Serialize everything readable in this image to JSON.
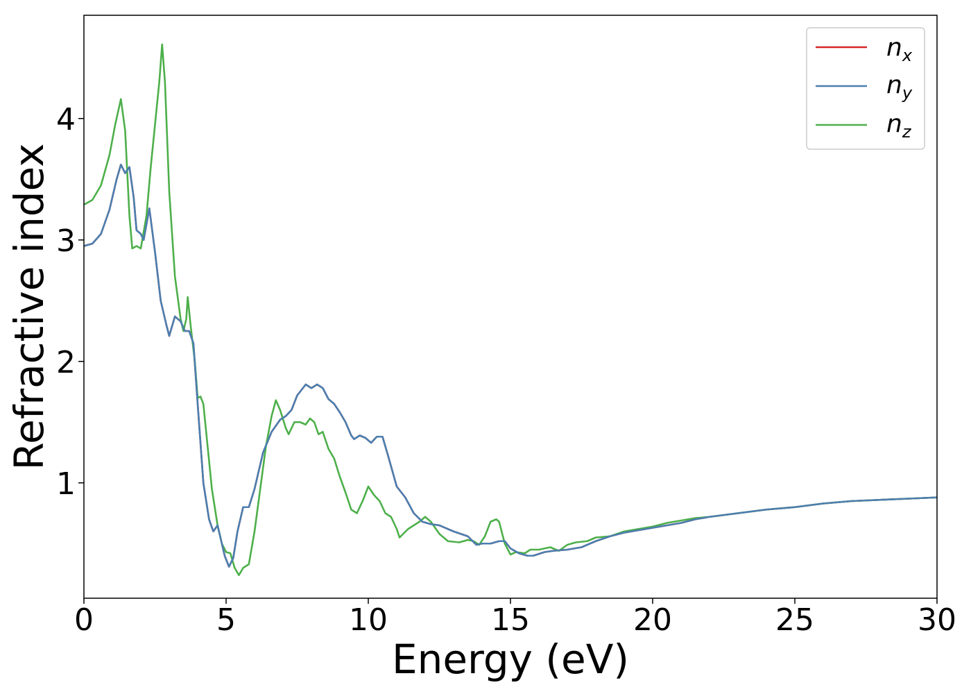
{
  "chart_data": {
    "type": "line",
    "title": "",
    "xlabel": "Energy (eV)",
    "ylabel": "Refractive index",
    "xlim": [
      0,
      30
    ],
    "ylim": [
      0.05,
      4.85
    ],
    "grid": false,
    "legend_position": "top-right",
    "xticks": [
      0,
      5,
      10,
      15,
      20,
      25,
      30
    ],
    "xtick_labels": [
      "0",
      "5",
      "10",
      "15",
      "20",
      "25",
      "30"
    ],
    "yticks": [
      1,
      2,
      3,
      4
    ],
    "ytick_labels": [
      "1",
      "2",
      "3",
      "4"
    ],
    "series": [
      {
        "name": "n_x",
        "legend_base": "n",
        "legend_sub": "x",
        "color": "#d62728",
        "points": [
          [
            0,
            2.95
          ],
          [
            0.3,
            2.97
          ],
          [
            0.6,
            3.05
          ],
          [
            0.9,
            3.25
          ],
          [
            1.15,
            3.5
          ],
          [
            1.3,
            3.62
          ],
          [
            1.45,
            3.55
          ],
          [
            1.6,
            3.6
          ],
          [
            1.75,
            3.35
          ],
          [
            1.85,
            3.08
          ],
          [
            2.0,
            3.05
          ],
          [
            2.1,
            3.0
          ],
          [
            2.3,
            3.26
          ],
          [
            2.5,
            2.9
          ],
          [
            2.7,
            2.5
          ],
          [
            2.9,
            2.3
          ],
          [
            3.0,
            2.21
          ],
          [
            3.2,
            2.37
          ],
          [
            3.4,
            2.33
          ],
          [
            3.55,
            2.25
          ],
          [
            3.7,
            2.25
          ],
          [
            3.85,
            2.15
          ],
          [
            4.0,
            1.65
          ],
          [
            4.2,
            1.0
          ],
          [
            4.4,
            0.7
          ],
          [
            4.55,
            0.6
          ],
          [
            4.7,
            0.65
          ],
          [
            4.8,
            0.55
          ],
          [
            4.95,
            0.4
          ],
          [
            5.1,
            0.31
          ],
          [
            5.25,
            0.38
          ],
          [
            5.4,
            0.6
          ],
          [
            5.6,
            0.8
          ],
          [
            5.8,
            0.8
          ],
          [
            6.0,
            0.95
          ],
          [
            6.3,
            1.25
          ],
          [
            6.6,
            1.42
          ],
          [
            6.9,
            1.52
          ],
          [
            7.1,
            1.55
          ],
          [
            7.3,
            1.6
          ],
          [
            7.5,
            1.72
          ],
          [
            7.8,
            1.81
          ],
          [
            8.0,
            1.78
          ],
          [
            8.2,
            1.81
          ],
          [
            8.4,
            1.78
          ],
          [
            8.6,
            1.69
          ],
          [
            8.8,
            1.65
          ],
          [
            9.0,
            1.58
          ],
          [
            9.2,
            1.5
          ],
          [
            9.4,
            1.39
          ],
          [
            9.5,
            1.36
          ],
          [
            9.7,
            1.39
          ],
          [
            9.9,
            1.37
          ],
          [
            10.1,
            1.33
          ],
          [
            10.3,
            1.38
          ],
          [
            10.5,
            1.38
          ],
          [
            10.7,
            1.22
          ],
          [
            11.0,
            0.97
          ],
          [
            11.3,
            0.88
          ],
          [
            11.6,
            0.75
          ],
          [
            11.9,
            0.68
          ],
          [
            12.2,
            0.66
          ],
          [
            12.5,
            0.65
          ],
          [
            13.0,
            0.6
          ],
          [
            13.5,
            0.56
          ],
          [
            13.8,
            0.49
          ],
          [
            14.0,
            0.5
          ],
          [
            14.3,
            0.5
          ],
          [
            14.6,
            0.52
          ],
          [
            14.8,
            0.52
          ],
          [
            15.0,
            0.46
          ],
          [
            15.3,
            0.42
          ],
          [
            15.6,
            0.4
          ],
          [
            15.8,
            0.4
          ],
          [
            16.2,
            0.43
          ],
          [
            16.5,
            0.44
          ],
          [
            17.0,
            0.45
          ],
          [
            17.5,
            0.47
          ],
          [
            18.0,
            0.52
          ],
          [
            18.5,
            0.56
          ],
          [
            19.0,
            0.59
          ],
          [
            19.5,
            0.61
          ],
          [
            20.0,
            0.63
          ],
          [
            20.5,
            0.65
          ],
          [
            21.0,
            0.67
          ],
          [
            21.5,
            0.7
          ],
          [
            22.0,
            0.72
          ],
          [
            23.0,
            0.75
          ],
          [
            24.0,
            0.78
          ],
          [
            25.0,
            0.8
          ],
          [
            26.0,
            0.83
          ],
          [
            27.0,
            0.85
          ],
          [
            28.0,
            0.86
          ],
          [
            29.0,
            0.87
          ],
          [
            30.0,
            0.88
          ]
        ]
      },
      {
        "name": "n_y",
        "legend_base": "n",
        "legend_sub": "y",
        "color": "#4a7fb0",
        "points": [
          [
            0,
            2.95
          ],
          [
            0.3,
            2.97
          ],
          [
            0.6,
            3.05
          ],
          [
            0.9,
            3.25
          ],
          [
            1.15,
            3.5
          ],
          [
            1.3,
            3.62
          ],
          [
            1.45,
            3.55
          ],
          [
            1.6,
            3.6
          ],
          [
            1.75,
            3.35
          ],
          [
            1.85,
            3.08
          ],
          [
            2.0,
            3.05
          ],
          [
            2.1,
            3.0
          ],
          [
            2.3,
            3.26
          ],
          [
            2.5,
            2.9
          ],
          [
            2.7,
            2.5
          ],
          [
            2.9,
            2.3
          ],
          [
            3.0,
            2.21
          ],
          [
            3.2,
            2.37
          ],
          [
            3.4,
            2.33
          ],
          [
            3.55,
            2.25
          ],
          [
            3.7,
            2.25
          ],
          [
            3.85,
            2.15
          ],
          [
            4.0,
            1.65
          ],
          [
            4.2,
            1.0
          ],
          [
            4.4,
            0.7
          ],
          [
            4.55,
            0.6
          ],
          [
            4.7,
            0.65
          ],
          [
            4.8,
            0.55
          ],
          [
            4.95,
            0.4
          ],
          [
            5.1,
            0.31
          ],
          [
            5.25,
            0.38
          ],
          [
            5.4,
            0.6
          ],
          [
            5.6,
            0.8
          ],
          [
            5.8,
            0.8
          ],
          [
            6.0,
            0.95
          ],
          [
            6.3,
            1.25
          ],
          [
            6.6,
            1.42
          ],
          [
            6.9,
            1.52
          ],
          [
            7.1,
            1.55
          ],
          [
            7.3,
            1.6
          ],
          [
            7.5,
            1.72
          ],
          [
            7.8,
            1.81
          ],
          [
            8.0,
            1.78
          ],
          [
            8.2,
            1.81
          ],
          [
            8.4,
            1.78
          ],
          [
            8.6,
            1.69
          ],
          [
            8.8,
            1.65
          ],
          [
            9.0,
            1.58
          ],
          [
            9.2,
            1.5
          ],
          [
            9.4,
            1.39
          ],
          [
            9.5,
            1.36
          ],
          [
            9.7,
            1.39
          ],
          [
            9.9,
            1.37
          ],
          [
            10.1,
            1.33
          ],
          [
            10.3,
            1.38
          ],
          [
            10.5,
            1.38
          ],
          [
            10.7,
            1.22
          ],
          [
            11.0,
            0.97
          ],
          [
            11.3,
            0.88
          ],
          [
            11.6,
            0.75
          ],
          [
            11.9,
            0.68
          ],
          [
            12.2,
            0.66
          ],
          [
            12.5,
            0.65
          ],
          [
            13.0,
            0.6
          ],
          [
            13.5,
            0.56
          ],
          [
            13.8,
            0.49
          ],
          [
            14.0,
            0.5
          ],
          [
            14.3,
            0.5
          ],
          [
            14.6,
            0.52
          ],
          [
            14.8,
            0.52
          ],
          [
            15.0,
            0.46
          ],
          [
            15.3,
            0.42
          ],
          [
            15.6,
            0.4
          ],
          [
            15.8,
            0.4
          ],
          [
            16.2,
            0.43
          ],
          [
            16.5,
            0.44
          ],
          [
            17.0,
            0.45
          ],
          [
            17.5,
            0.47
          ],
          [
            18.0,
            0.52
          ],
          [
            18.5,
            0.56
          ],
          [
            19.0,
            0.59
          ],
          [
            19.5,
            0.61
          ],
          [
            20.0,
            0.63
          ],
          [
            20.5,
            0.65
          ],
          [
            21.0,
            0.67
          ],
          [
            21.5,
            0.7
          ],
          [
            22.0,
            0.72
          ],
          [
            23.0,
            0.75
          ],
          [
            24.0,
            0.78
          ],
          [
            25.0,
            0.8
          ],
          [
            26.0,
            0.83
          ],
          [
            27.0,
            0.85
          ],
          [
            28.0,
            0.86
          ],
          [
            29.0,
            0.87
          ],
          [
            30.0,
            0.88
          ]
        ]
      },
      {
        "name": "n_z",
        "legend_base": "n",
        "legend_sub": "z",
        "color": "#4daf4a",
        "points": [
          [
            0,
            3.29
          ],
          [
            0.3,
            3.33
          ],
          [
            0.6,
            3.45
          ],
          [
            0.9,
            3.7
          ],
          [
            1.1,
            3.95
          ],
          [
            1.3,
            4.16
          ],
          [
            1.45,
            3.9
          ],
          [
            1.6,
            3.2
          ],
          [
            1.7,
            2.93
          ],
          [
            1.85,
            2.95
          ],
          [
            2.0,
            2.93
          ],
          [
            2.2,
            3.2
          ],
          [
            2.35,
            3.6
          ],
          [
            2.5,
            3.95
          ],
          [
            2.65,
            4.3
          ],
          [
            2.75,
            4.61
          ],
          [
            2.85,
            4.3
          ],
          [
            3.0,
            3.4
          ],
          [
            3.2,
            2.7
          ],
          [
            3.4,
            2.35
          ],
          [
            3.5,
            2.25
          ],
          [
            3.6,
            2.35
          ],
          [
            3.65,
            2.53
          ],
          [
            3.75,
            2.3
          ],
          [
            3.9,
            2.0
          ],
          [
            4.0,
            1.7
          ],
          [
            4.1,
            1.71
          ],
          [
            4.2,
            1.65
          ],
          [
            4.35,
            1.3
          ],
          [
            4.5,
            0.95
          ],
          [
            4.7,
            0.65
          ],
          [
            4.85,
            0.5
          ],
          [
            5.0,
            0.43
          ],
          [
            5.15,
            0.42
          ],
          [
            5.3,
            0.3
          ],
          [
            5.45,
            0.24
          ],
          [
            5.6,
            0.3
          ],
          [
            5.8,
            0.33
          ],
          [
            6.0,
            0.6
          ],
          [
            6.2,
            0.95
          ],
          [
            6.4,
            1.3
          ],
          [
            6.6,
            1.55
          ],
          [
            6.75,
            1.68
          ],
          [
            6.9,
            1.6
          ],
          [
            7.1,
            1.45
          ],
          [
            7.2,
            1.4
          ],
          [
            7.4,
            1.5
          ],
          [
            7.6,
            1.5
          ],
          [
            7.8,
            1.48
          ],
          [
            7.95,
            1.53
          ],
          [
            8.1,
            1.5
          ],
          [
            8.25,
            1.4
          ],
          [
            8.4,
            1.42
          ],
          [
            8.6,
            1.28
          ],
          [
            8.8,
            1.2
          ],
          [
            9.0,
            1.05
          ],
          [
            9.2,
            0.92
          ],
          [
            9.4,
            0.78
          ],
          [
            9.6,
            0.75
          ],
          [
            9.8,
            0.85
          ],
          [
            10.0,
            0.97
          ],
          [
            10.2,
            0.9
          ],
          [
            10.4,
            0.85
          ],
          [
            10.6,
            0.75
          ],
          [
            10.8,
            0.72
          ],
          [
            11.0,
            0.62
          ],
          [
            11.1,
            0.55
          ],
          [
            11.4,
            0.62
          ],
          [
            11.8,
            0.68
          ],
          [
            12.0,
            0.72
          ],
          [
            12.2,
            0.68
          ],
          [
            12.5,
            0.58
          ],
          [
            12.8,
            0.52
          ],
          [
            13.2,
            0.51
          ],
          [
            13.5,
            0.53
          ],
          [
            13.7,
            0.52
          ],
          [
            13.9,
            0.49
          ],
          [
            14.1,
            0.56
          ],
          [
            14.3,
            0.68
          ],
          [
            14.5,
            0.7
          ],
          [
            14.6,
            0.68
          ],
          [
            14.8,
            0.5
          ],
          [
            15.0,
            0.41
          ],
          [
            15.2,
            0.43
          ],
          [
            15.5,
            0.42
          ],
          [
            15.7,
            0.45
          ],
          [
            16.0,
            0.45
          ],
          [
            16.4,
            0.47
          ],
          [
            16.7,
            0.44
          ],
          [
            17.0,
            0.49
          ],
          [
            17.3,
            0.51
          ],
          [
            17.7,
            0.52
          ],
          [
            18.0,
            0.55
          ],
          [
            18.5,
            0.56
          ],
          [
            19.0,
            0.6
          ],
          [
            19.5,
            0.62
          ],
          [
            20.0,
            0.64
          ],
          [
            20.5,
            0.67
          ],
          [
            21.0,
            0.69
          ],
          [
            21.5,
            0.71
          ],
          [
            22.0,
            0.72
          ],
          [
            23.0,
            0.75
          ],
          [
            24.0,
            0.78
          ],
          [
            25.0,
            0.8
          ],
          [
            26.0,
            0.83
          ],
          [
            27.0,
            0.85
          ],
          [
            28.0,
            0.86
          ],
          [
            29.0,
            0.87
          ],
          [
            30.0,
            0.88
          ]
        ]
      }
    ]
  }
}
